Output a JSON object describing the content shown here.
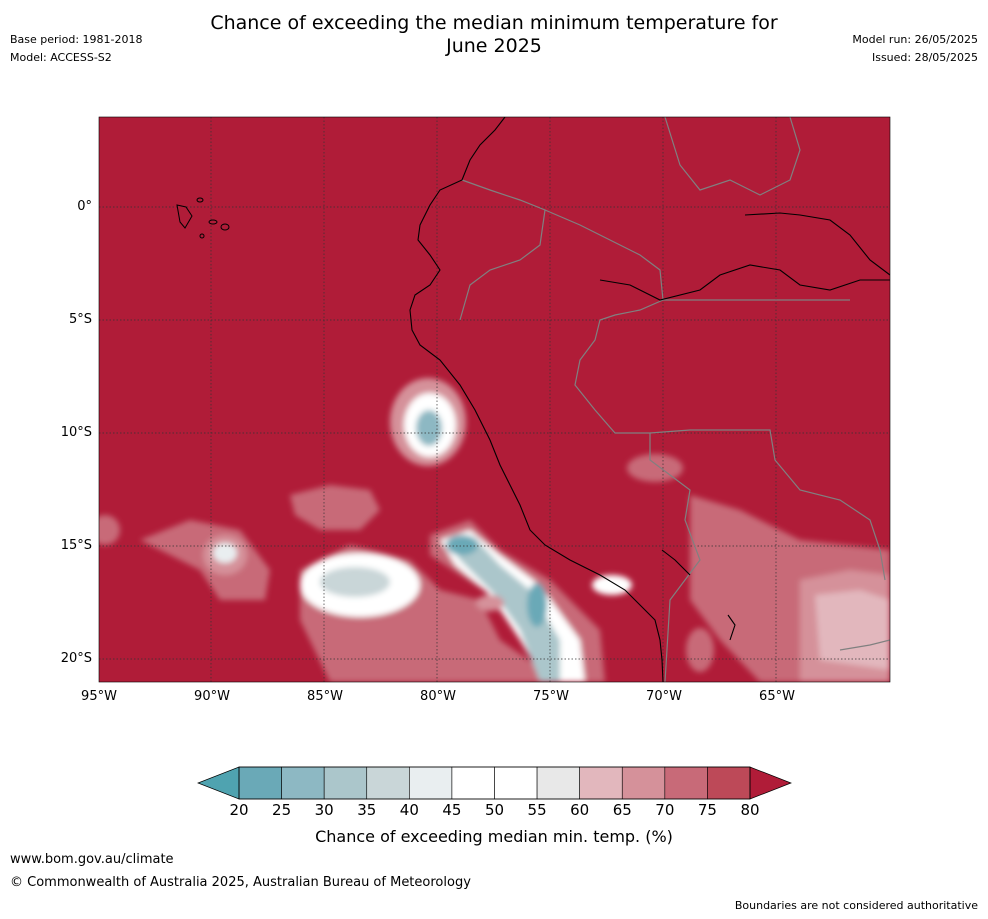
{
  "header": {
    "base_period": "Base period: 1981-2018",
    "model": "Model: ACCESS-S2",
    "title_line1": "Chance of exceeding the median minimum temperature for",
    "title_line2": "June 2025",
    "model_run": "Model run: 26/05/2025",
    "issued": "Issued: 28/05/2025"
  },
  "map": {
    "lon_ticks": [
      "95°W",
      "90°W",
      "85°W",
      "80°W",
      "75°W",
      "70°W",
      "65°W"
    ],
    "lat_ticks": [
      "0°",
      "5°S",
      "10°S",
      "15°S",
      "20°S"
    ],
    "background_color": "#b01c38"
  },
  "colorbar": {
    "ticks": [
      "20",
      "25",
      "30",
      "35",
      "40",
      "45",
      "50",
      "55",
      "60",
      "65",
      "70",
      "75",
      "80"
    ],
    "colors": [
      "#6aa9b7",
      "#8db8c3",
      "#abc6cb",
      "#c9d6d8",
      "#e9eef0",
      "#ffffff",
      "#ffffff",
      "#e8e8e8",
      "#e2b7bd",
      "#d5919a",
      "#c86a78",
      "#bd4958"
    ],
    "low_color": "#4fa3b0",
    "high_color": "#b01c38",
    "label": "Chance of exceeding median min. temp. (%)"
  },
  "footer": {
    "website": "www.bom.gov.au/climate",
    "copyright": "© Commonwealth of Australia 2025, Australian Bureau of Meteorology",
    "disclaimer": "Boundaries are not considered authoritative"
  }
}
